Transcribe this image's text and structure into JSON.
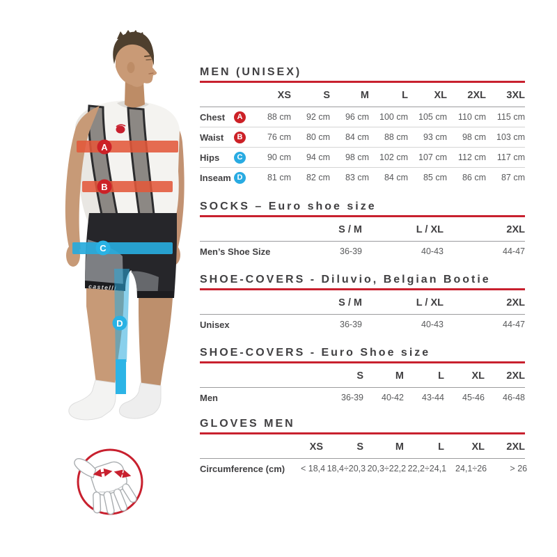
{
  "colors": {
    "accent_red": "#c8202e",
    "marker_red": "#cc2127",
    "marker_cyan": "#29abe2",
    "band_red": "#e2583a",
    "band_cyan": "#27aadc",
    "title_text": "#414042",
    "value_text": "#58595b"
  },
  "figure": {
    "shorts_logo_text": "castelli",
    "markers": [
      {
        "label": "A",
        "color": "red"
      },
      {
        "label": "B",
        "color": "red"
      },
      {
        "label": "C",
        "color": "cyan"
      },
      {
        "label": "D",
        "color": "cyan"
      }
    ],
    "icons": {
      "glove_measure": "hand-outline-with-red-double-arrows-in-red-circle"
    }
  },
  "tables": [
    {
      "title": "MEN (UNISEX)",
      "columns": [
        "XS",
        "S",
        "M",
        "L",
        "XL",
        "2XL",
        "3XL"
      ],
      "rows": [
        {
          "label": "Chest",
          "marker": "A",
          "marker_color": "red",
          "values": [
            "88 cm",
            "92 cm",
            "96 cm",
            "100 cm",
            "105 cm",
            "110 cm",
            "115 cm"
          ]
        },
        {
          "label": "Waist",
          "marker": "B",
          "marker_color": "red",
          "values": [
            "76 cm",
            "80 cm",
            "84 cm",
            "88 cm",
            "93 cm",
            "98 cm",
            "103 cm"
          ]
        },
        {
          "label": "Hips",
          "marker": "C",
          "marker_color": "cyan",
          "values": [
            "90 cm",
            "94 cm",
            "98 cm",
            "102 cm",
            "107 cm",
            "112 cm",
            "117 cm"
          ]
        },
        {
          "label": "Inseam",
          "marker": "D",
          "marker_color": "cyan",
          "values": [
            "81 cm",
            "82 cm",
            "83 cm",
            "84 cm",
            "85 cm",
            "86 cm",
            "87 cm"
          ]
        }
      ]
    },
    {
      "title": "SOCKS – Euro shoe size",
      "columns": [
        "S / M",
        "L / XL",
        "2XL"
      ],
      "rows": [
        {
          "label": "Men’s Shoe Size",
          "values": [
            "36-39",
            "40-43",
            "44-47"
          ]
        }
      ]
    },
    {
      "title": "SHOE-COVERS - Diluvio, Belgian Bootie",
      "columns": [
        "S / M",
        "L / XL",
        "2XL"
      ],
      "rows": [
        {
          "label": "Unisex",
          "values": [
            "36-39",
            "40-43",
            "44-47"
          ]
        }
      ]
    },
    {
      "title": "SHOE-COVERS - Euro Shoe size",
      "columns": [
        "S",
        "M",
        "L",
        "XL",
        "2XL"
      ],
      "rows": [
        {
          "label": "Men",
          "values": [
            "36-39",
            "40-42",
            "43-44",
            "45-46",
            "46-48"
          ]
        }
      ]
    },
    {
      "title": "GLOVES MEN",
      "columns": [
        "XS",
        "S",
        "M",
        "L",
        "XL",
        "2XL"
      ],
      "rows": [
        {
          "label": "Circumference (cm)",
          "values": [
            "< 18,4",
            "18,4÷20,3",
            "20,3÷22,2",
            "22,2÷24,1",
            "24,1÷26",
            "> 26"
          ]
        }
      ]
    }
  ]
}
